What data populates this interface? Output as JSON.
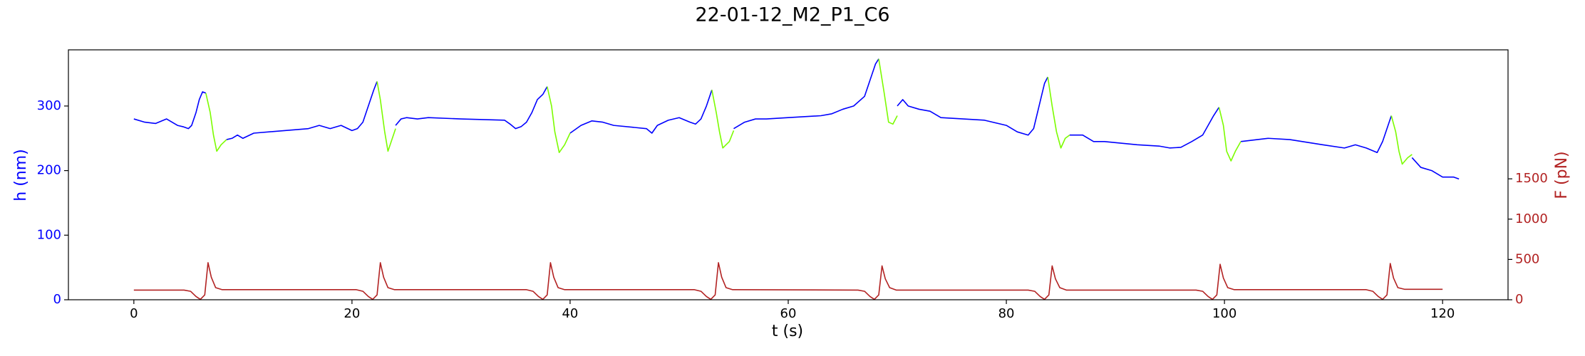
{
  "chart_data": {
    "type": "line",
    "title": "22-01-12_M2_P1_C6",
    "xlabel": "t (s)",
    "ylabel": "h (nm)",
    "y2label": "F (pN)",
    "xlim": [
      -6,
      126
    ],
    "xticks": [
      0,
      20,
      40,
      60,
      80,
      100,
      120
    ],
    "ylim": [
      0,
      387
    ],
    "yticks": [
      0,
      100,
      200,
      300
    ],
    "y2lim": [
      0,
      3100
    ],
    "y2ticks": [
      0,
      500,
      1000,
      1500
    ],
    "series": [
      {
        "color": "#0000ff",
        "x": [
          0,
          1,
          2,
          3,
          4,
          4.5,
          5,
          5.3,
          5.7,
          6,
          6.3,
          6.6,
          7.5,
          8.5,
          9,
          9.5,
          10,
          11,
          16,
          17,
          18,
          19,
          20,
          20.5,
          21,
          21.5,
          22,
          22.3,
          23,
          24,
          24.5,
          25,
          26,
          27,
          30,
          34,
          34.5,
          35,
          35.5,
          36,
          36.5,
          37,
          37.5,
          37.9,
          39,
          40,
          41,
          42,
          43,
          44,
          47,
          47.5,
          48,
          49,
          50,
          51,
          51.5,
          52,
          52.5,
          53,
          54,
          55,
          56,
          57,
          58,
          60,
          63,
          64,
          65,
          66,
          67,
          67.5,
          68,
          68.3,
          69,
          70,
          70.5,
          71,
          72,
          73,
          74,
          78,
          80,
          81,
          82,
          82.5,
          83,
          83.5,
          83.8,
          85,
          85.8,
          87,
          88,
          89,
          92,
          94,
          95,
          96,
          97,
          98,
          99,
          99.5,
          100.5,
          101.5,
          103,
          104,
          106,
          109,
          111,
          112,
          113,
          114,
          114.5,
          115,
          115.3,
          116.3,
          117.2,
          118,
          119,
          120,
          121,
          121.5
        ],
        "values": [
          280,
          275,
          273,
          280,
          270,
          268,
          265,
          270,
          290,
          310,
          322,
          320,
          null,
          248,
          250,
          255,
          250,
          258,
          265,
          270,
          265,
          270,
          262,
          265,
          275,
          300,
          325,
          338,
          null,
          270,
          280,
          282,
          280,
          282,
          280,
          278,
          272,
          265,
          268,
          275,
          290,
          310,
          318,
          330,
          null,
          258,
          270,
          277,
          275,
          270,
          265,
          258,
          270,
          278,
          282,
          275,
          272,
          280,
          300,
          325,
          null,
          265,
          275,
          280,
          280,
          282,
          285,
          288,
          295,
          300,
          315,
          340,
          365,
          373,
          null,
          300,
          310,
          300,
          295,
          292,
          282,
          278,
          270,
          260,
          255,
          265,
          300,
          335,
          345,
          null,
          255,
          255,
          245,
          245,
          240,
          238,
          235,
          236,
          245,
          255,
          285,
          298,
          null,
          245,
          248,
          250,
          248,
          240,
          235,
          240,
          235,
          228,
          245,
          270,
          285,
          null,
          220,
          205,
          200,
          190,
          190,
          187
        ]
      },
      {
        "color": "#7cfc00",
        "x": [
          6.6,
          7,
          7.3,
          7.6,
          8,
          8.5,
          15,
          22.3,
          22.6,
          23,
          23.3,
          23.7,
          24,
          30,
          37.9,
          38.3,
          38.6,
          39,
          39.5,
          40,
          45,
          53,
          53.4,
          53.7,
          54,
          54.6,
          55,
          60,
          68.3,
          68.8,
          69.2,
          69.6,
          70,
          75,
          83.8,
          84.2,
          84.6,
          85,
          85.4,
          85.8,
          90,
          99.5,
          99.9,
          100.2,
          100.6,
          101,
          101.5,
          110,
          115.3,
          115.7,
          116,
          116.3,
          116.8,
          117.2
        ],
        "values": [
          320,
          290,
          255,
          230,
          240,
          248,
          null,
          338,
          310,
          260,
          230,
          250,
          265,
          null,
          330,
          300,
          260,
          228,
          240,
          258,
          null,
          325,
          290,
          260,
          235,
          245,
          262,
          null,
          373,
          320,
          275,
          272,
          285,
          null,
          345,
          300,
          260,
          235,
          250,
          255,
          null,
          298,
          270,
          230,
          215,
          230,
          245,
          null,
          285,
          260,
          230,
          210,
          220,
          225
        ]
      },
      {
        "color": "#b22222",
        "axis": "y2",
        "x": [
          0,
          4.6,
          5.2,
          5.7,
          6.1,
          6.5,
          6.8,
          7.1,
          7.5,
          8.1,
          20.4,
          21,
          21.5,
          21.9,
          22.3,
          22.6,
          22.9,
          23.3,
          23.9,
          36,
          36.6,
          37.1,
          37.5,
          37.9,
          38.2,
          38.5,
          38.9,
          39.5,
          51.4,
          52,
          52.5,
          52.9,
          53.3,
          53.6,
          53.9,
          54.3,
          54.9,
          66.4,
          67,
          67.5,
          67.9,
          68.3,
          68.6,
          68.9,
          69.3,
          69.9,
          82,
          82.6,
          83.1,
          83.5,
          83.9,
          84.2,
          84.5,
          84.9,
          85.5,
          97.4,
          98,
          98.5,
          98.9,
          99.3,
          99.6,
          99.9,
          100.3,
          100.9,
          113,
          113.6,
          114.1,
          114.5,
          114.9,
          115.2,
          115.5,
          115.9,
          116.5,
          120
        ],
        "values": [
          120,
          120,
          105,
          40,
          5,
          60,
          460,
          280,
          150,
          125,
          125,
          105,
          40,
          5,
          60,
          460,
          280,
          150,
          125,
          125,
          105,
          40,
          5,
          60,
          460,
          280,
          150,
          125,
          125,
          105,
          40,
          5,
          60,
          460,
          280,
          150,
          125,
          120,
          105,
          40,
          5,
          60,
          420,
          260,
          150,
          120,
          120,
          105,
          40,
          5,
          60,
          420,
          260,
          150,
          120,
          120,
          105,
          40,
          5,
          60,
          440,
          270,
          150,
          125,
          125,
          105,
          40,
          5,
          60,
          450,
          270,
          150,
          130,
          130
        ]
      }
    ]
  }
}
